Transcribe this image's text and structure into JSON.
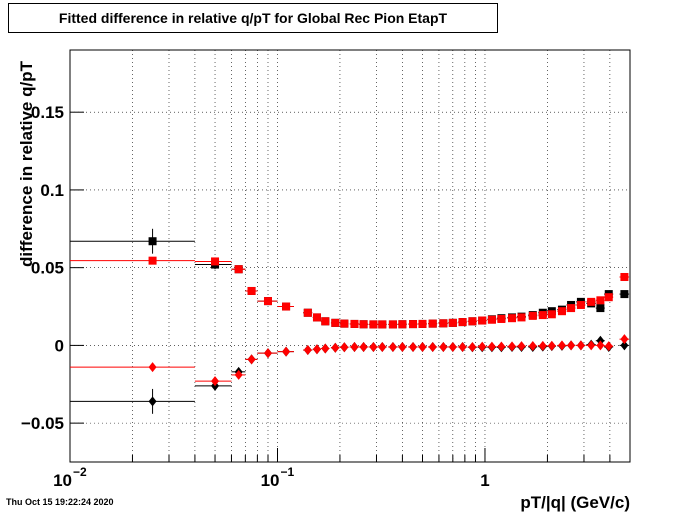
{
  "chart_data": {
    "type": "scatter",
    "title": "Fitted difference in relative q/pT for Global Rec Pion EtapT",
    "x_label": "pT/|q| (GeV/c)",
    "y_label": "difference in relative q/pT",
    "timestamp": "Thu Oct 15 19:22:24 2020",
    "xlog": true,
    "grid": true,
    "xlim": [
      0.01,
      5
    ],
    "ylim": [
      -0.075,
      0.19
    ],
    "xticks": [
      {
        "value": 0.01,
        "label": "10",
        "exponent": "−2"
      },
      {
        "value": 0.1,
        "label": "10",
        "exponent": "−1"
      },
      1
    ],
    "xminorticks": [
      0.02,
      0.03,
      0.04,
      0.05,
      0.06,
      0.07,
      0.08,
      0.09,
      0.2,
      0.3,
      0.4,
      0.5,
      0.6,
      0.7,
      0.8,
      0.9,
      2,
      3,
      4
    ],
    "yticks": [
      {
        "value": -0.05,
        "label": "−0.05"
      },
      0,
      0.05,
      0.1,
      0.15
    ],
    "x": [
      0.025,
      0.05,
      0.065,
      0.075,
      0.09,
      0.11,
      0.14,
      0.155,
      0.17,
      0.19,
      0.21,
      0.235,
      0.26,
      0.29,
      0.32,
      0.36,
      0.4,
      0.45,
      0.5,
      0.56,
      0.63,
      0.7,
      0.78,
      0.87,
      0.97,
      1.08,
      1.2,
      1.35,
      1.5,
      1.7,
      1.9,
      2.1,
      2.35,
      2.6,
      2.9,
      3.25,
      3.6,
      3.95,
      4.7
    ],
    "xerr": [
      0.015,
      0.01,
      0.005,
      0.005,
      0.01,
      0.01,
      0.007,
      0.007,
      0.008,
      0.009,
      0.01,
      0.012,
      0.013,
      0.015,
      0.016,
      0.018,
      0.02,
      0.023,
      0.025,
      0.028,
      0.032,
      0.035,
      0.039,
      0.044,
      0.049,
      0.054,
      0.06,
      0.068,
      0.075,
      0.085,
      0.095,
      0.1,
      0.12,
      0.13,
      0.15,
      0.17,
      0.18,
      0.2,
      0.25
    ],
    "series": [
      {
        "color": "#000000",
        "marker": "square",
        "values": [
          0.067,
          0.052,
          0.049,
          0.035,
          0.0285,
          0.025,
          0.021,
          0.018,
          0.0155,
          0.0145,
          0.014,
          0.0138,
          0.0136,
          0.0135,
          0.0135,
          0.0135,
          0.0136,
          0.0137,
          0.0138,
          0.014,
          0.0142,
          0.0145,
          0.015,
          0.0155,
          0.016,
          0.0168,
          0.0175,
          0.018,
          0.0185,
          0.0195,
          0.021,
          0.022,
          0.023,
          0.026,
          0.028,
          0.027,
          0.024,
          0.033,
          0.033
        ],
        "errors": [
          0.008,
          0.003,
          0.002,
          0.002,
          0.002,
          0.002,
          0.001,
          0.001,
          0.001,
          0.001,
          0.001,
          0.001,
          0.001,
          0.001,
          0.001,
          0.001,
          0.001,
          0.001,
          0.001,
          0.001,
          0.001,
          0.001,
          0.001,
          0.001,
          0.001,
          0.001,
          0.001,
          0.001,
          0.001,
          0.001,
          0.001,
          0.001,
          0.001,
          0.001,
          0.002,
          0.002,
          0.002,
          0.002,
          0.002
        ]
      },
      {
        "color": "#000000",
        "marker": "diamond",
        "values": [
          -0.036,
          -0.026,
          -0.017,
          -0.009,
          -0.005,
          -0.004,
          -0.003,
          -0.0025,
          -0.002,
          -0.0015,
          -0.0012,
          -0.001,
          -0.001,
          -0.001,
          -0.001,
          -0.001,
          -0.001,
          -0.001,
          -0.001,
          -0.001,
          -0.001,
          -0.001,
          -0.001,
          -0.0012,
          -0.0012,
          -0.0012,
          -0.0012,
          -0.001,
          -0.001,
          -0.001,
          -0.0008,
          -0.0005,
          -0.0003,
          0,
          0,
          0.0005,
          0.003,
          -0.001,
          0
        ],
        "errors": [
          0.008,
          0.003,
          0.002,
          0.002,
          0.002,
          0.002,
          0.001,
          0.001,
          0.001,
          0.001,
          0.001,
          0.001,
          0.001,
          0.001,
          0.001,
          0.001,
          0.001,
          0.001,
          0.001,
          0.001,
          0.001,
          0.001,
          0.001,
          0.001,
          0.001,
          0.001,
          0.001,
          0.001,
          0.001,
          0.001,
          0.001,
          0.001,
          0.001,
          0.001,
          0.002,
          0.002,
          0.002,
          0.002,
          0.002
        ]
      },
      {
        "color": "#ff0000",
        "marker": "square",
        "values": [
          0.0545,
          0.054,
          0.049,
          0.035,
          0.0285,
          0.025,
          0.021,
          0.018,
          0.0155,
          0.0145,
          0.014,
          0.0138,
          0.0136,
          0.0135,
          0.0135,
          0.0135,
          0.0136,
          0.0137,
          0.0138,
          0.014,
          0.0142,
          0.0145,
          0.015,
          0.0155,
          0.016,
          0.0165,
          0.017,
          0.0175,
          0.018,
          0.019,
          0.0195,
          0.02,
          0.022,
          0.024,
          0.026,
          0.028,
          0.029,
          0.031,
          0.044
        ],
        "errors": [
          0.002,
          0.002,
          0.002,
          0.002,
          0.002,
          0.002,
          0.001,
          0.001,
          0.001,
          0.001,
          0.001,
          0.001,
          0.001,
          0.001,
          0.001,
          0.001,
          0.001,
          0.001,
          0.001,
          0.001,
          0.001,
          0.001,
          0.001,
          0.001,
          0.001,
          0.001,
          0.001,
          0.001,
          0.001,
          0.001,
          0.001,
          0.001,
          0.001,
          0.001,
          0.001,
          0.001,
          0.001,
          0.001,
          0.001
        ]
      },
      {
        "color": "#ff0000",
        "marker": "diamond",
        "values": [
          -0.014,
          -0.023,
          -0.019,
          -0.009,
          -0.005,
          -0.004,
          -0.003,
          -0.0025,
          -0.002,
          -0.0015,
          -0.0012,
          -0.001,
          -0.001,
          -0.001,
          -0.001,
          -0.001,
          -0.001,
          -0.001,
          -0.001,
          -0.001,
          -0.001,
          -0.001,
          -0.001,
          -0.001,
          -0.0008,
          -0.0008,
          -0.0007,
          -0.0006,
          -0.0005,
          -0.0004,
          -0.0003,
          -0.0002,
          0,
          0,
          0,
          0,
          0,
          -0.0005,
          0.004
        ],
        "errors": [
          0.002,
          0.002,
          0.002,
          0.002,
          0.002,
          0.002,
          0.001,
          0.001,
          0.001,
          0.001,
          0.001,
          0.001,
          0.001,
          0.001,
          0.001,
          0.001,
          0.001,
          0.001,
          0.001,
          0.001,
          0.001,
          0.001,
          0.001,
          0.001,
          0.001,
          0.001,
          0.001,
          0.001,
          0.001,
          0.001,
          0.001,
          0.001,
          0.001,
          0.001,
          0.001,
          0.001,
          0.001,
          0.001,
          0.001
        ]
      }
    ]
  }
}
